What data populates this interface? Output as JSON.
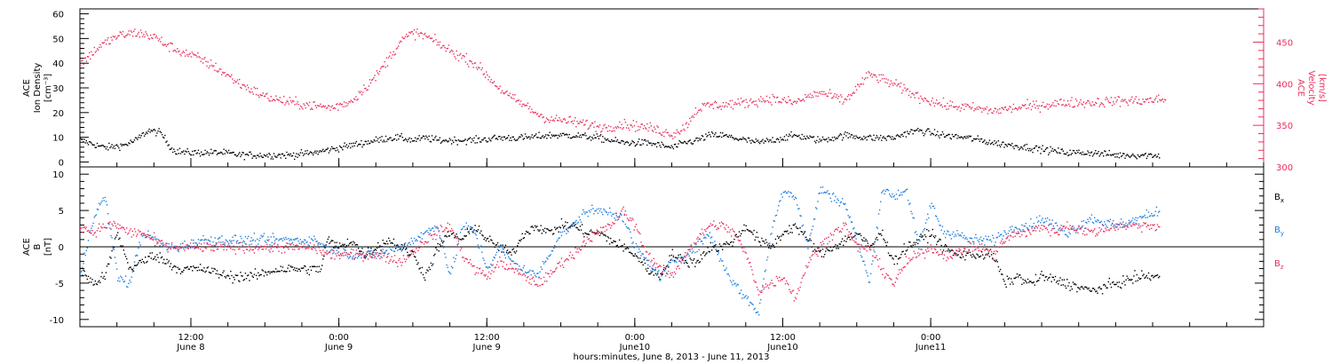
{
  "colors": {
    "density": "#000000",
    "velocity": "#e8305c",
    "bx": "#000000",
    "by": "#1f7fe0",
    "bz": "#e8305c",
    "axis": "#000000"
  },
  "chart_data": [
    {
      "type": "scatter",
      "panel": "plasma",
      "ylabel_left_lines": [
        "ACE",
        "Ion Density",
        "[cm⁻³]"
      ],
      "ylabel_right_lines": [
        "ACE",
        "Velocity",
        "[km/s]"
      ],
      "ylim_left": [
        -2,
        62
      ],
      "ylim_right": [
        300,
        490
      ],
      "left_ticks": [
        "0",
        "10",
        "20",
        "30",
        "40",
        "50",
        "60"
      ],
      "right_ticks": [
        "300",
        "350",
        "400",
        "450"
      ],
      "xlim_hours": [
        0,
        96
      ],
      "series": [
        {
          "axis": "left",
          "color_key": "density",
          "x_hours": [
            0,
            2,
            3.5,
            4.5,
            5.5,
            6.5,
            7.5,
            8.5,
            9.5,
            10.5,
            11.5,
            13,
            15,
            17,
            19,
            21,
            23,
            24,
            25,
            26,
            27,
            28,
            29,
            30,
            32,
            34,
            36,
            38,
            40,
            42,
            44,
            46,
            47,
            48,
            49,
            50,
            51,
            52,
            53,
            54,
            55,
            56,
            57,
            58,
            60,
            62,
            64,
            66,
            67,
            68,
            69,
            70,
            72,
            74,
            75.5,
            77,
            78.5,
            80,
            82,
            84,
            86,
            87.5
          ],
          "y": [
            9,
            6,
            7,
            9,
            13,
            12,
            5,
            4,
            4,
            4,
            4,
            3,
            3,
            3,
            4,
            6,
            8,
            9,
            10,
            10,
            9,
            10,
            9,
            9,
            9,
            10,
            10,
            11,
            11,
            10,
            8,
            8,
            7,
            6,
            8,
            9,
            11,
            11,
            10,
            9,
            8,
            9,
            10,
            11,
            9,
            11,
            10,
            10,
            12,
            13,
            12,
            11,
            10,
            8,
            7,
            6,
            5,
            4,
            4,
            3,
            3,
            3
          ]
        },
        {
          "axis": "right",
          "color_key": "velocity",
          "x_hours": [
            0,
            1.5,
            3,
            4.5,
            6,
            7,
            8,
            9.5,
            11,
            13,
            15,
            17,
            19,
            20.5,
            22,
            24,
            26,
            27,
            28,
            30,
            32,
            33,
            34,
            35,
            36,
            37,
            38,
            39.5,
            41,
            42.5,
            44,
            46,
            48,
            49,
            50,
            51,
            52,
            54,
            56,
            57,
            58,
            59,
            60,
            61,
            62,
            64,
            66,
            67,
            68,
            70,
            72,
            74,
            76,
            78,
            80,
            82,
            84,
            86,
            88
          ],
          "y": [
            425,
            445,
            458,
            462,
            457,
            447,
            440,
            432,
            420,
            400,
            385,
            378,
            374,
            372,
            380,
            410,
            452,
            462,
            458,
            440,
            425,
            410,
            395,
            383,
            375,
            365,
            358,
            356,
            352,
            348,
            352,
            348,
            340,
            348,
            370,
            375,
            375,
            378,
            383,
            380,
            378,
            385,
            390,
            385,
            380,
            412,
            400,
            392,
            385,
            375,
            372,
            368,
            372,
            375,
            378,
            378,
            380,
            380,
            382
          ]
        }
      ]
    },
    {
      "type": "scatter",
      "panel": "magnetic",
      "ylabel_lines": [
        "ACE",
        "B",
        "[nT]"
      ],
      "ylim": [
        -11,
        11
      ],
      "y_ticks": [
        "-10",
        "-5",
        "0",
        "5",
        "10"
      ],
      "zero_line": true,
      "xlim_hours": [
        0,
        96
      ],
      "legend": [
        "Bx",
        "By",
        "Bz"
      ],
      "legend_placement": "right",
      "series": [
        {
          "name": "Bx",
          "color_key": "bx",
          "x_hours": [
            0,
            1,
            2,
            3,
            4,
            5,
            6,
            7,
            8,
            9,
            10,
            12,
            14,
            16,
            18,
            19.5,
            20,
            21,
            22,
            23,
            24,
            25,
            26,
            27,
            28,
            29,
            30,
            31,
            32,
            33,
            34,
            35,
            36,
            37,
            38,
            39,
            40,
            41,
            42,
            43,
            44,
            45,
            46,
            47,
            48,
            49,
            50,
            51,
            52,
            53,
            54,
            55,
            56,
            57,
            58,
            59,
            60,
            61,
            62,
            63,
            64,
            65,
            66,
            67,
            68,
            69,
            70,
            71,
            72,
            73,
            74,
            75,
            76,
            77,
            78,
            80,
            82,
            84,
            86,
            87.5
          ],
          "y": [
            -3,
            -5,
            -4,
            2,
            -3,
            -2,
            -1,
            -2,
            -3,
            -3,
            -3,
            -4,
            -4,
            -3,
            -3,
            -3,
            1,
            0,
            1,
            -1,
            0,
            1,
            0,
            -1,
            -4,
            0,
            2,
            1,
            3,
            1,
            0,
            -1,
            2,
            3,
            2,
            3,
            3,
            2,
            2,
            1,
            0,
            -1,
            -3,
            -4,
            -1,
            -2,
            -2,
            0,
            0,
            1,
            3,
            1,
            0,
            2,
            3,
            1,
            -1,
            0,
            1,
            2,
            0,
            2,
            -2,
            0,
            1,
            2,
            0,
            -1,
            -1,
            -1,
            -1,
            -5,
            -4,
            -5,
            -4,
            -5,
            -6,
            -5,
            -4,
            -4
          ]
        },
        {
          "name": "By",
          "color_key": "by",
          "x_hours": [
            0,
            1,
            2,
            3,
            4,
            5,
            6,
            7,
            8,
            10,
            12,
            14,
            16,
            18,
            19,
            20,
            22,
            24,
            26,
            28,
            29,
            30,
            31,
            32,
            33,
            34,
            35,
            36,
            37,
            38,
            39,
            40,
            41,
            42,
            43,
            44,
            45,
            46,
            47,
            48,
            49,
            50,
            51,
            52,
            53,
            54,
            55,
            56,
            57,
            58,
            59,
            60,
            61,
            62,
            63,
            64,
            65,
            66,
            67,
            68,
            69,
            70,
            71,
            72,
            73,
            74,
            75,
            76,
            77,
            78,
            79,
            80,
            82,
            84,
            86,
            87.5
          ],
          "y": [
            -4,
            4,
            7,
            -4,
            -5,
            2,
            1,
            0,
            0,
            1,
            1,
            1,
            1,
            1,
            1,
            0,
            -1,
            -1,
            0,
            2,
            3,
            -4,
            3,
            2,
            -3,
            0,
            -2,
            -3,
            -4,
            -1,
            2,
            3,
            5,
            5,
            5,
            4,
            0,
            -2,
            -4,
            -2,
            -1,
            0,
            2,
            -2,
            -5,
            -7,
            -9,
            2,
            8,
            7,
            0,
            8,
            7,
            6,
            1,
            -5,
            8,
            7,
            8,
            0,
            6,
            2,
            2,
            1,
            1,
            1,
            2,
            3,
            3,
            4,
            3,
            2,
            4,
            3,
            4,
            5
          ]
        },
        {
          "name": "Bz",
          "color_key": "bz",
          "x_hours": [
            0,
            1,
            2,
            3,
            4,
            5,
            6,
            7,
            8,
            10,
            12,
            14,
            16,
            18,
            19,
            20,
            22,
            24,
            26,
            28,
            29,
            30,
            31,
            32,
            33,
            34,
            35,
            36,
            37,
            38,
            39,
            40,
            41,
            42,
            43,
            44,
            45,
            46,
            47,
            48,
            49,
            50,
            51,
            52,
            53,
            54,
            55,
            56,
            57,
            58,
            59,
            60,
            61,
            62,
            63,
            64,
            65,
            66,
            67,
            68,
            69,
            70,
            71,
            72,
            73,
            74,
            75,
            76,
            77,
            78,
            79,
            80,
            82,
            84,
            86,
            87.5
          ],
          "y": [
            3,
            2,
            3,
            3,
            2,
            2,
            1,
            0,
            0,
            0,
            0,
            0,
            0,
            0,
            0,
            -1,
            -1,
            -1,
            -2,
            1,
            2,
            3,
            -1,
            -3,
            -4,
            -2,
            -3,
            -4,
            -5,
            -4,
            -2,
            -1,
            1,
            2,
            3,
            5,
            3,
            -1,
            -3,
            -4,
            -1,
            1,
            3,
            3,
            2,
            -1,
            -6,
            -5,
            -4,
            -7,
            -2,
            0,
            2,
            3,
            0,
            0,
            -3,
            -5,
            -2,
            -1,
            0,
            -1,
            -1,
            0,
            0,
            -1,
            1,
            2,
            2,
            3,
            2,
            3,
            2,
            3,
            3,
            3
          ]
        }
      ]
    }
  ],
  "x_axis": {
    "start": "June 8, 2013 03:00",
    "ticks": [
      {
        "hour": 9,
        "time": "12:00",
        "date": "June 8"
      },
      {
        "hour": 21,
        "time": "0:00",
        "date": "June 9"
      },
      {
        "hour": 33,
        "time": "12:00",
        "date": "June 9"
      },
      {
        "hour": 45,
        "time": "0:00",
        "date": "June10"
      },
      {
        "hour": 57,
        "time": "12:00",
        "date": "June10"
      },
      {
        "hour": 69,
        "time": "0:00",
        "date": "June11"
      }
    ],
    "title": "hours:minutes, June  8, 2013 - June 11, 2013"
  }
}
